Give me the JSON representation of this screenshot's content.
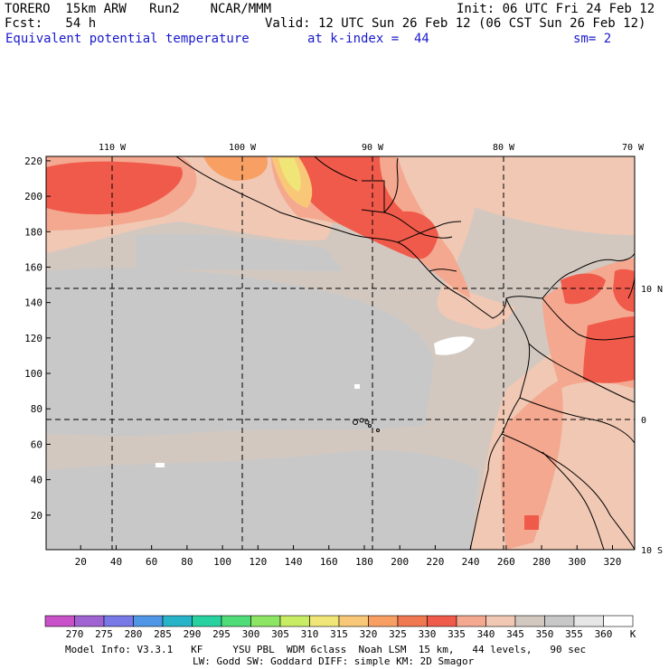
{
  "header": {
    "model": "TORERO  15km ARW   Run2    NCAR/MMM",
    "init": "Init: 06 UTC Fri 24 Feb 12",
    "fcst": "Fcst:   54 h",
    "valid": "Valid: 12 UTC Sun 26 Feb 12 (06 CST Sun 26 Feb 12)",
    "field": "Equivalent potential temperature",
    "level": "at k-index =  44",
    "smooth": "sm= 2"
  },
  "map": {
    "lon_labels": [
      "110 W",
      "100 W",
      "90 W",
      "80 W",
      "70 W"
    ],
    "lat_labels": [
      "10 N",
      "0",
      "10 S"
    ],
    "y_ticks": [
      "20",
      "40",
      "60",
      "80",
      "100",
      "120",
      "140",
      "160",
      "180",
      "200",
      "220"
    ],
    "x_ticks": [
      "20",
      "40",
      "60",
      "80",
      "100",
      "120",
      "140",
      "160",
      "180",
      "200",
      "220",
      "240",
      "260",
      "280",
      "300",
      "320"
    ]
  },
  "colorbar": {
    "unit": "K",
    "levels": [
      "270",
      "275",
      "280",
      "285",
      "290",
      "295",
      "300",
      "305",
      "310",
      "315",
      "320",
      "325",
      "330",
      "335",
      "340",
      "345",
      "350",
      "355",
      "360"
    ],
    "colors": [
      "#c850c8",
      "#a064d2",
      "#7878e6",
      "#5096e6",
      "#28b4c8",
      "#28d2a0",
      "#50dc78",
      "#8ce664",
      "#c8ec64",
      "#f0e678",
      "#f8c878",
      "#f8a064",
      "#f07850",
      "#f05a4a",
      "#f4a890",
      "#f0c8b4",
      "#d2c8c0",
      "#c8c8c8",
      "#e6e6e6",
      "#ffffff"
    ]
  },
  "footer": {
    "line1": "Model Info: V3.3.1   KF     YSU PBL  WDM 6class  Noah LSM  15 km,   44 levels,   90 sec",
    "line2": "LW: Godd SW: Goddard DIFF: simple KM: 2D Smagor"
  }
}
